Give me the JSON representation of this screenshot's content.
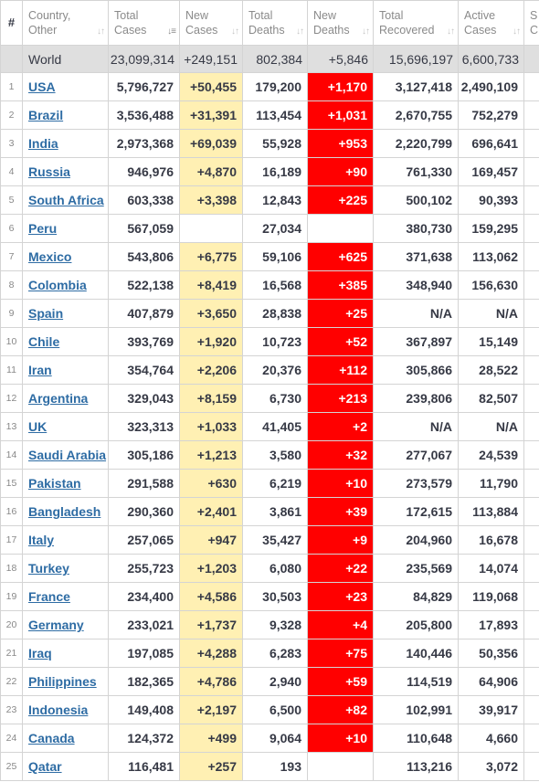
{
  "headers": {
    "idx": "#",
    "country": "Country, Other",
    "total_cases": "Total Cases",
    "new_cases": "New Cases",
    "total_deaths": "Total Deaths",
    "new_deaths": "New Deaths",
    "total_recovered": "Total Recovered",
    "active_cases": "Active Cases",
    "serious": "S C"
  },
  "sort_icons": {
    "default": "↓↑",
    "active": "↓≡"
  },
  "world": {
    "name": "World",
    "total_cases": "23,099,314",
    "new_cases": "+249,151",
    "total_deaths": "802,384",
    "new_deaths": "+5,846",
    "total_recovered": "15,696,197",
    "active_cases": "6,600,733"
  },
  "rows": [
    {
      "idx": "1",
      "country": "USA",
      "total_cases": "5,796,727",
      "new_cases": "+50,455",
      "total_deaths": "179,200",
      "new_deaths": "+1,170",
      "total_recovered": "3,127,418",
      "active_cases": "2,490,109"
    },
    {
      "idx": "2",
      "country": "Brazil",
      "total_cases": "3,536,488",
      "new_cases": "+31,391",
      "total_deaths": "113,454",
      "new_deaths": "+1,031",
      "total_recovered": "2,670,755",
      "active_cases": "752,279"
    },
    {
      "idx": "3",
      "country": "India",
      "total_cases": "2,973,368",
      "new_cases": "+69,039",
      "total_deaths": "55,928",
      "new_deaths": "+953",
      "total_recovered": "2,220,799",
      "active_cases": "696,641"
    },
    {
      "idx": "4",
      "country": "Russia",
      "total_cases": "946,976",
      "new_cases": "+4,870",
      "total_deaths": "16,189",
      "new_deaths": "+90",
      "total_recovered": "761,330",
      "active_cases": "169,457"
    },
    {
      "idx": "5",
      "country": "South Africa",
      "total_cases": "603,338",
      "new_cases": "+3,398",
      "total_deaths": "12,843",
      "new_deaths": "+225",
      "total_recovered": "500,102",
      "active_cases": "90,393"
    },
    {
      "idx": "6",
      "country": "Peru",
      "total_cases": "567,059",
      "new_cases": "",
      "total_deaths": "27,034",
      "new_deaths": "",
      "total_recovered": "380,730",
      "active_cases": "159,295"
    },
    {
      "idx": "7",
      "country": "Mexico",
      "total_cases": "543,806",
      "new_cases": "+6,775",
      "total_deaths": "59,106",
      "new_deaths": "+625",
      "total_recovered": "371,638",
      "active_cases": "113,062"
    },
    {
      "idx": "8",
      "country": "Colombia",
      "total_cases": "522,138",
      "new_cases": "+8,419",
      "total_deaths": "16,568",
      "new_deaths": "+385",
      "total_recovered": "348,940",
      "active_cases": "156,630"
    },
    {
      "idx": "9",
      "country": "Spain",
      "total_cases": "407,879",
      "new_cases": "+3,650",
      "total_deaths": "28,838",
      "new_deaths": "+25",
      "total_recovered": "N/A",
      "active_cases": "N/A"
    },
    {
      "idx": "10",
      "country": "Chile",
      "total_cases": "393,769",
      "new_cases": "+1,920",
      "total_deaths": "10,723",
      "new_deaths": "+52",
      "total_recovered": "367,897",
      "active_cases": "15,149"
    },
    {
      "idx": "11",
      "country": "Iran",
      "total_cases": "354,764",
      "new_cases": "+2,206",
      "total_deaths": "20,376",
      "new_deaths": "+112",
      "total_recovered": "305,866",
      "active_cases": "28,522"
    },
    {
      "idx": "12",
      "country": "Argentina",
      "total_cases": "329,043",
      "new_cases": "+8,159",
      "total_deaths": "6,730",
      "new_deaths": "+213",
      "total_recovered": "239,806",
      "active_cases": "82,507"
    },
    {
      "idx": "13",
      "country": "UK",
      "total_cases": "323,313",
      "new_cases": "+1,033",
      "total_deaths": "41,405",
      "new_deaths": "+2",
      "total_recovered": "N/A",
      "active_cases": "N/A"
    },
    {
      "idx": "14",
      "country": "Saudi Arabia",
      "total_cases": "305,186",
      "new_cases": "+1,213",
      "total_deaths": "3,580",
      "new_deaths": "+32",
      "total_recovered": "277,067",
      "active_cases": "24,539"
    },
    {
      "idx": "15",
      "country": "Pakistan",
      "total_cases": "291,588",
      "new_cases": "+630",
      "total_deaths": "6,219",
      "new_deaths": "+10",
      "total_recovered": "273,579",
      "active_cases": "11,790"
    },
    {
      "idx": "16",
      "country": "Bangladesh",
      "total_cases": "290,360",
      "new_cases": "+2,401",
      "total_deaths": "3,861",
      "new_deaths": "+39",
      "total_recovered": "172,615",
      "active_cases": "113,884"
    },
    {
      "idx": "17",
      "country": "Italy",
      "total_cases": "257,065",
      "new_cases": "+947",
      "total_deaths": "35,427",
      "new_deaths": "+9",
      "total_recovered": "204,960",
      "active_cases": "16,678"
    },
    {
      "idx": "18",
      "country": "Turkey",
      "total_cases": "255,723",
      "new_cases": "+1,203",
      "total_deaths": "6,080",
      "new_deaths": "+22",
      "total_recovered": "235,569",
      "active_cases": "14,074"
    },
    {
      "idx": "19",
      "country": "France",
      "total_cases": "234,400",
      "new_cases": "+4,586",
      "total_deaths": "30,503",
      "new_deaths": "+23",
      "total_recovered": "84,829",
      "active_cases": "119,068"
    },
    {
      "idx": "20",
      "country": "Germany",
      "total_cases": "233,021",
      "new_cases": "+1,737",
      "total_deaths": "9,328",
      "new_deaths": "+4",
      "total_recovered": "205,800",
      "active_cases": "17,893"
    },
    {
      "idx": "21",
      "country": "Iraq",
      "total_cases": "197,085",
      "new_cases": "+4,288",
      "total_deaths": "6,283",
      "new_deaths": "+75",
      "total_recovered": "140,446",
      "active_cases": "50,356"
    },
    {
      "idx": "22",
      "country": "Philippines",
      "total_cases": "182,365",
      "new_cases": "+4,786",
      "total_deaths": "2,940",
      "new_deaths": "+59",
      "total_recovered": "114,519",
      "active_cases": "64,906"
    },
    {
      "idx": "23",
      "country": "Indonesia",
      "total_cases": "149,408",
      "new_cases": "+2,197",
      "total_deaths": "6,500",
      "new_deaths": "+82",
      "total_recovered": "102,991",
      "active_cases": "39,917"
    },
    {
      "idx": "24",
      "country": "Canada",
      "total_cases": "124,372",
      "new_cases": "+499",
      "total_deaths": "9,064",
      "new_deaths": "+10",
      "total_recovered": "110,648",
      "active_cases": "4,660"
    },
    {
      "idx": "25",
      "country": "Qatar",
      "total_cases": "116,481",
      "new_cases": "+257",
      "total_deaths": "193",
      "new_deaths": "",
      "total_recovered": "113,216",
      "active_cases": "3,072"
    }
  ],
  "colors": {
    "new_cases_highlight": "#fff0b3",
    "new_deaths_highlight": "#ff0000",
    "world_row_bg": "#dfdfdf",
    "country_link": "#2e6ca4"
  }
}
